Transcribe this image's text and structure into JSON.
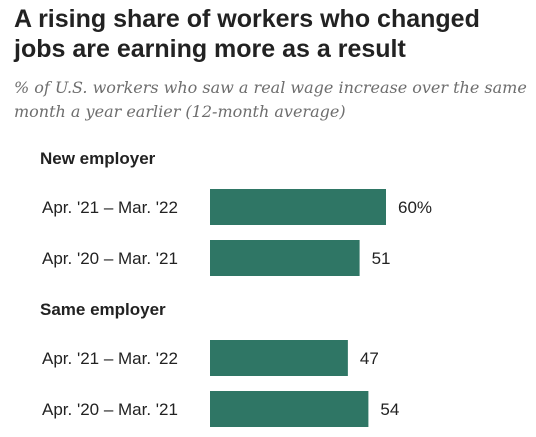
{
  "title": "A rising share of workers who changed jobs are earning more as a result",
  "subtitle": "% of U.S. workers who saw a real wage increase over the same month a year earlier (12-month average)",
  "colors": {
    "bar": "#2f7665"
  },
  "chart_data": {
    "type": "bar",
    "orientation": "horizontal",
    "unit": "%",
    "groups": [
      {
        "label": "New employer",
        "bars": [
          {
            "category": "Apr. '21 – Mar. '22",
            "value": 60,
            "value_label": "60%"
          },
          {
            "category": "Apr. '20 – Mar. '21",
            "value": 51,
            "value_label": "51"
          }
        ]
      },
      {
        "label": "Same employer",
        "bars": [
          {
            "category": "Apr. '21 – Mar. '22",
            "value": 47,
            "value_label": "47"
          },
          {
            "category": "Apr. '20 – Mar. '21",
            "value": 54,
            "value_label": "54"
          }
        ]
      }
    ]
  }
}
